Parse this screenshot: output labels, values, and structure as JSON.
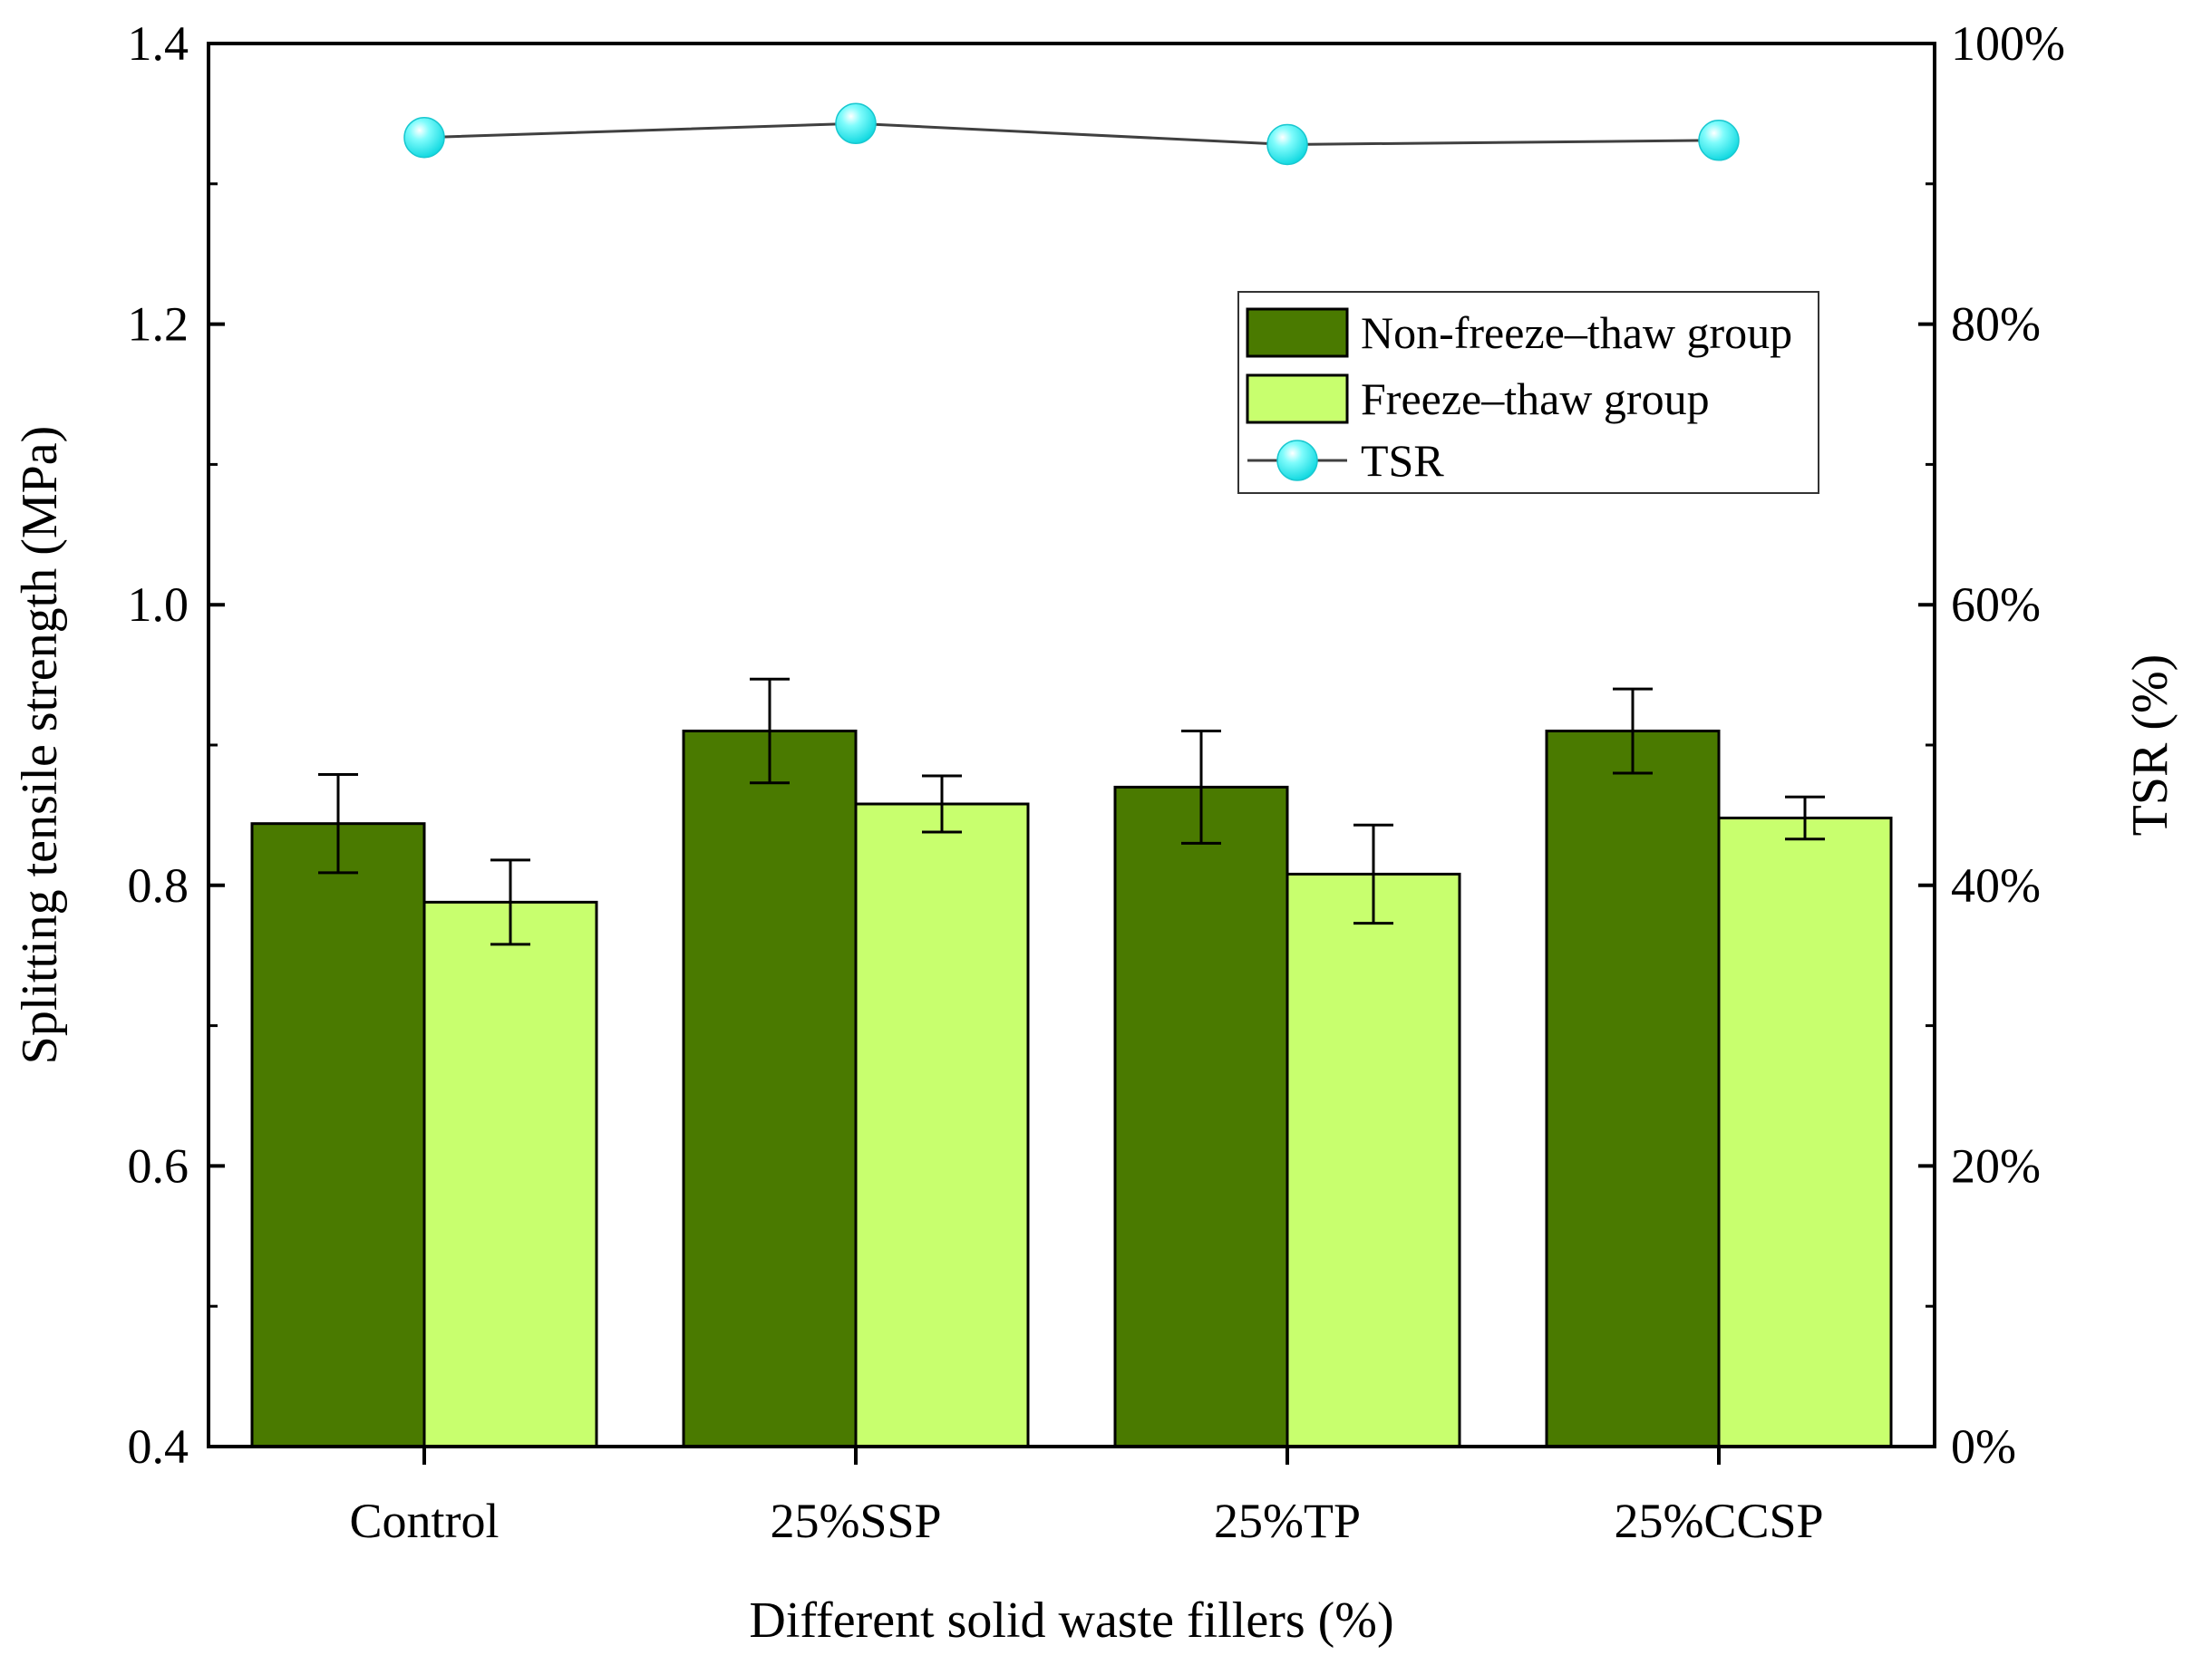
{
  "chart_data": {
    "type": "bar",
    "categories": [
      "Control",
      "25%SSP",
      "25%TP",
      "25%CCSP"
    ],
    "series": [
      {
        "name": "Non-freeze–thaw group",
        "axis": "left",
        "values": [
          0.844,
          0.91,
          0.87,
          0.91
        ],
        "errors": [
          0.035,
          0.037,
          0.04,
          0.03
        ],
        "color": "#4a7a00"
      },
      {
        "name": "Freeze–thaw group",
        "axis": "left",
        "values": [
          0.788,
          0.858,
          0.808,
          0.848
        ],
        "errors": [
          0.03,
          0.02,
          0.035,
          0.015
        ],
        "color": "#c8ff6e"
      },
      {
        "name": "TSR",
        "type": "line",
        "axis": "right",
        "values": [
          93.3,
          94.3,
          92.8,
          93.1
        ],
        "color": "#22f0f0"
      }
    ],
    "xlabel": "Different solid waste fillers (%)",
    "ylabel": "Splitting tensile strength (MPa)",
    "y2label": "TSR (%)",
    "ylim": [
      0.4,
      1.4
    ],
    "yticks": [
      "0.4",
      "0.6",
      "0.8",
      "1.0",
      "1.2",
      "1.4"
    ],
    "y2lim": [
      0,
      100
    ],
    "y2ticks": [
      "0%",
      "20%",
      "40%",
      "60%",
      "80%",
      "100%"
    ],
    "legend": {
      "position": "upper-right inside",
      "entries": [
        "Non-freeze–thaw group",
        "Freeze–thaw group",
        "TSR"
      ]
    },
    "grid": false
  }
}
